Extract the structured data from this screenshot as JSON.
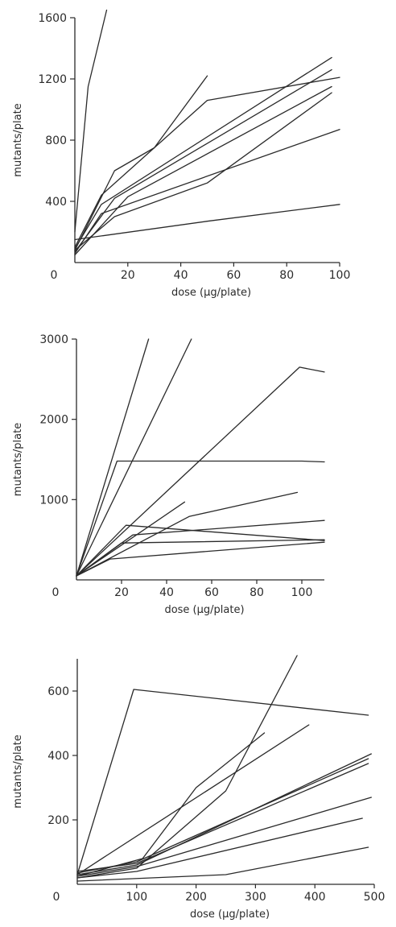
{
  "chart_data": [
    {
      "type": "line",
      "xlabel": "dose (μg/plate)",
      "ylabel": "mutants/plate",
      "xlim": [
        0,
        100
      ],
      "ylim": [
        0,
        1600
      ],
      "xticks": [
        0,
        20,
        40,
        60,
        80,
        100
      ],
      "yticks": [
        0,
        400,
        800,
        1200,
        1600
      ],
      "series": [
        {
          "x": [
            0,
            5,
            12
          ],
          "y": [
            200,
            1150,
            1650
          ]
        },
        {
          "x": [
            0,
            50,
            100
          ],
          "y": [
            150,
            270,
            380
          ]
        },
        {
          "x": [
            0,
            15,
            30,
            50
          ],
          "y": [
            80,
            600,
            750,
            1220
          ]
        },
        {
          "x": [
            0,
            10,
            50,
            100
          ],
          "y": [
            100,
            440,
            1060,
            1210
          ]
        },
        {
          "x": [
            0,
            10,
            97
          ],
          "y": [
            90,
            380,
            1340
          ]
        },
        {
          "x": [
            0,
            15,
            97
          ],
          "y": [
            70,
            420,
            1260
          ]
        },
        {
          "x": [
            0,
            15,
            50,
            97
          ],
          "y": [
            80,
            300,
            520,
            1110
          ]
        },
        {
          "x": [
            0,
            10,
            100
          ],
          "y": [
            60,
            320,
            870
          ]
        },
        {
          "x": [
            0,
            20,
            97
          ],
          "y": [
            50,
            430,
            1150
          ]
        }
      ]
    },
    {
      "type": "line",
      "xlabel": "dose (μg/plate)",
      "ylabel": "mutants/plate",
      "xlim": [
        0,
        110
      ],
      "ylim": [
        0,
        3000
      ],
      "xticks": [
        0,
        20,
        40,
        60,
        80,
        100
      ],
      "yticks": [
        0,
        1000,
        2000,
        3000
      ],
      "series": [
        {
          "x": [
            0,
            32
          ],
          "y": [
            50,
            3000
          ]
        },
        {
          "x": [
            0,
            51
          ],
          "y": [
            50,
            3000
          ]
        },
        {
          "x": [
            0,
            99,
            110
          ],
          "y": [
            50,
            2650,
            2590
          ]
        },
        {
          "x": [
            0,
            18,
            100,
            110
          ],
          "y": [
            50,
            1480,
            1480,
            1470
          ]
        },
        {
          "x": [
            0,
            50,
            98
          ],
          "y": [
            50,
            790,
            1090
          ]
        },
        {
          "x": [
            0,
            48
          ],
          "y": [
            50,
            970
          ]
        },
        {
          "x": [
            0,
            25,
            110
          ],
          "y": [
            50,
            560,
            740
          ]
        },
        {
          "x": [
            0,
            20,
            110
          ],
          "y": [
            50,
            460,
            500
          ]
        },
        {
          "x": [
            0,
            15,
            110
          ],
          "y": [
            50,
            260,
            470
          ]
        },
        {
          "x": [
            0,
            22,
            110
          ],
          "y": [
            50,
            680,
            490
          ]
        }
      ]
    },
    {
      "type": "line",
      "xlabel": "dose (μg/plate)",
      "ylabel": "mutants/plate",
      "xlim": [
        0,
        500
      ],
      "ylim": [
        0,
        700
      ],
      "xticks": [
        0,
        100,
        200,
        300,
        400,
        500
      ],
      "yticks": [
        200,
        400,
        600
      ],
      "series": [
        {
          "x": [
            0,
            95,
            490
          ],
          "y": [
            30,
            605,
            525
          ]
        },
        {
          "x": [
            0,
            100,
            250,
            370
          ],
          "y": [
            20,
            50,
            290,
            710
          ]
        },
        {
          "x": [
            0,
            110,
            200,
            315
          ],
          "y": [
            25,
            80,
            300,
            470
          ]
        },
        {
          "x": [
            0,
            50,
            390
          ],
          "y": [
            30,
            90,
            495
          ]
        },
        {
          "x": [
            0,
            250,
            490
          ],
          "y": [
            10,
            30,
            115
          ]
        },
        {
          "x": [
            0,
            100,
            480
          ],
          "y": [
            20,
            40,
            205
          ]
        },
        {
          "x": [
            0,
            100,
            495
          ],
          "y": [
            25,
            55,
            270
          ]
        },
        {
          "x": [
            0,
            100,
            495
          ],
          "y": [
            30,
            60,
            405
          ]
        },
        {
          "x": [
            0,
            100,
            490
          ],
          "y": [
            35,
            70,
            390
          ]
        },
        {
          "x": [
            0,
            100,
            490
          ],
          "y": [
            40,
            65,
            375
          ]
        }
      ]
    }
  ]
}
